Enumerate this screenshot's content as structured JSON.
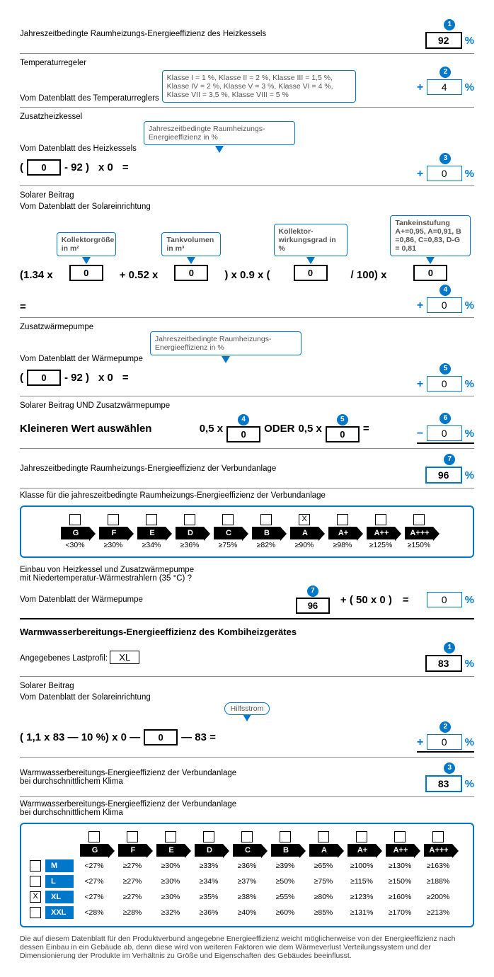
{
  "s1": {
    "title": "Jahreszeitbedingte Raumheizungs-Energieeffizienz des Heizkessels",
    "n": "1",
    "v": "92"
  },
  "s2": {
    "title": "Temperaturregeler",
    "sub": "Vom Datenblatt des Temperaturreglers",
    "tip": "Klasse I = 1 %, Klasse II = 2 %, Klasse III = 1,5 %, Klasse IV = 2 %, Klasse V = 3 %, Klasse VI = 4 %, Klasse VII = 3,5 %, Klasse VIII = 5 %",
    "n": "2",
    "v": "4"
  },
  "s3": {
    "title": "Zusatzheizkessel",
    "sub": "Vom Datenblatt des Heizkessels",
    "tip": "Jahreszeitbedingte Raumheizungs-Energieeffizienz in %",
    "n": "3",
    "v": "0",
    "in": "0",
    "m": "- 92 )",
    "mult": "x   0"
  },
  "s4": {
    "title": "Solarer Beitrag",
    "sub": "Vom Datenblatt der Solareinrichtung",
    "tA": "Kollektorgröße in m²",
    "tB": "Tankvolumen in m³",
    "tC": "Kollektor-wirkungsgrad in %",
    "tD": "Tankeinstufung A+=0,95, A=0,91, B =0,86, C=0,83, D-G = 0,81",
    "n": "4",
    "v": "0",
    "i1": "0",
    "i2": "0",
    "i3": "0",
    "i4": "0",
    "p1": "(1.34 x",
    "p2": "+ 0.52 x",
    "p3": ") x 0.9 x (",
    "p4": "/ 100)   x",
    "p5": "="
  },
  "s5": {
    "title": "Zusatzwärmepumpe",
    "sub": "Vom Datenblatt der Wärmepumpe",
    "tip": "Jahreszeitbedingte Raumheizungs-Energieeffizienz in %",
    "n": "5",
    "v": "0",
    "in": "0",
    "m": "- 92 )",
    "mult": "x   0"
  },
  "s6": {
    "title": "Solarer Beitrag UND Zusatzwärmepumpe",
    "sub": "Kleineren Wert auswählen",
    "n": "6",
    "v": "0",
    "na": "4",
    "nb": "5",
    "va": "0",
    "vb": "0",
    "p1": "0,5 x",
    "p2": "ODER",
    "p3": "0,5 x",
    "p4": "="
  },
  "s7": {
    "title": "Jahreszeitbedingte Raumheizungs-Energieeffizienz der Verbundanlage",
    "n": "7",
    "v": "96"
  },
  "cls": {
    "title": "Klasse für die jahreszeitbedingte Raumheizungs-Energieeffizienz der Verbundanlage",
    "items": [
      {
        "l": "G",
        "t": "<30%",
        "c": ""
      },
      {
        "l": "F",
        "t": "≥30%",
        "c": ""
      },
      {
        "l": "E",
        "t": "≥34%",
        "c": ""
      },
      {
        "l": "D",
        "t": "≥36%",
        "c": ""
      },
      {
        "l": "C",
        "t": "≥75%",
        "c": ""
      },
      {
        "l": "B",
        "t": "≥82%",
        "c": ""
      },
      {
        "l": "A",
        "t": "≥90%",
        "c": "X"
      },
      {
        "l": "A+",
        "t": "≥98%",
        "c": ""
      },
      {
        "l": "A++",
        "t": "≥125%",
        "c": ""
      },
      {
        "l": "A+++",
        "t": "≥150%",
        "c": ""
      }
    ]
  },
  "s8": {
    "t1": "Einbau von Heizkessel und Zusatzwärmepumpe",
    "t2": "mit Niedertemperatur-Wärmestrahlern (35 °C) ?",
    "sub": "Vom Datenblatt der Wärmepumpe",
    "n": "7",
    "in": "96",
    "eq": "+ ( 50 x 0 )",
    "v": "0"
  },
  "ww": {
    "h": "Warmwasserbereitungs-Energieeffizienz des Kombiheizgerätes",
    "lp": "Angegebenes Lastprofil:",
    "lpv": "XL",
    "n": "1",
    "v": "83"
  },
  "w2": {
    "title": "Solarer Beitrag",
    "sub": "Vom Datenblatt der Solareinrichtung",
    "tip": "Hilfsstrom",
    "n": "2",
    "v": "0",
    "p": "( 1,1   x   83   —   10 %)   x   0   —",
    "in": "0",
    "p2": "—   83   ="
  },
  "w3": {
    "title": "Warmwasserbereitungs-Energieeffizienz der Verbundanlage",
    "sub": "bei durchschnittlichem Klima",
    "n": "3",
    "v": "83"
  },
  "wcls": {
    "title": "Warmwasserbereitungs-Energieeffizienz der Verbundanlage",
    "sub": "bei durchschnittlichem Klima",
    "labels": [
      "G",
      "F",
      "E",
      "D",
      "C",
      "B",
      "A",
      "A+",
      "A++",
      "A+++"
    ],
    "rows": [
      {
        "c": "",
        "s": "M",
        "v": [
          "<27%",
          "≥27%",
          "≥30%",
          "≥33%",
          "≥36%",
          "≥39%",
          "≥65%",
          "≥100%",
          "≥130%",
          "≥163%"
        ]
      },
      {
        "c": "",
        "s": "L",
        "v": [
          "<27%",
          "≥27%",
          "≥30%",
          "≥34%",
          "≥37%",
          "≥50%",
          "≥75%",
          "≥115%",
          "≥150%",
          "≥188%"
        ]
      },
      {
        "c": "X",
        "s": "XL",
        "v": [
          "<27%",
          "≥27%",
          "≥30%",
          "≥35%",
          "≥38%",
          "≥55%",
          "≥80%",
          "≥123%",
          "≥160%",
          "≥200%"
        ]
      },
      {
        "c": "",
        "s": "XXL",
        "v": [
          "<28%",
          "≥28%",
          "≥32%",
          "≥36%",
          "≥40%",
          "≥60%",
          "≥85%",
          "≥131%",
          "≥170%",
          "≥213%"
        ]
      }
    ]
  },
  "foot": "Die auf diesem Datenblatt für den Produktverbund angegebne Energieeffizienz weicht möglicherweise von der Energieeffizienz nach dessen Einbau in ein Gebäude ab, denn diese wird von weiteren Faktoren wie dem Wärmeverlust Verteilungssystem und der Dimensionierung der Produkte im Verhältnis zu Größe und Eigenschaften des Gebäudes beeinflusst."
}
